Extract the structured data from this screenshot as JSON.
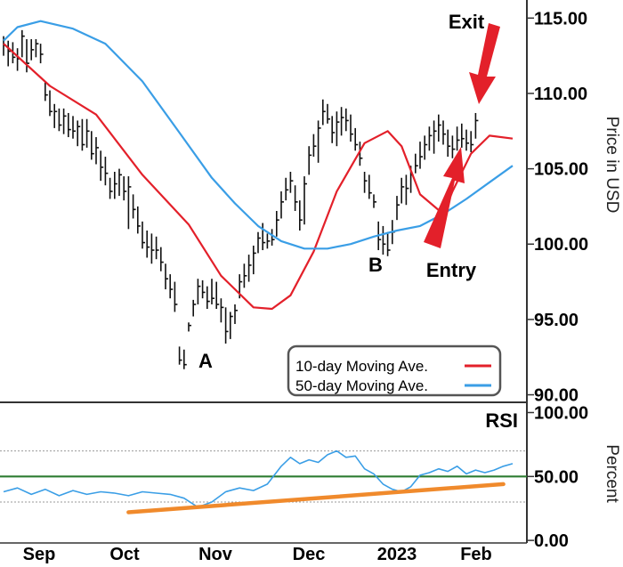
{
  "chart_data": [
    {
      "type": "ohlc",
      "ylabel": "Price in USD",
      "yticks": [
        "115.00",
        "110.00",
        "105.00",
        "100.00",
        "95.00",
        "90.00"
      ],
      "ylim": [
        89.5,
        116.2
      ],
      "x_months": [
        "Sep",
        "Oct",
        "Nov",
        "Dec",
        "2023",
        "Feb"
      ],
      "legend": [
        {
          "name": "10-day Moving Ave.",
          "color": "#e3202a"
        },
        {
          "name": "50-day Moving Ave.",
          "color": "#3a9ee6"
        }
      ],
      "legend_position": "bottom-right",
      "annotations": [
        {
          "text": "A",
          "kind": "label"
        },
        {
          "text": "B",
          "kind": "label"
        },
        {
          "text": "Exit",
          "kind": "arrow"
        },
        {
          "text": "Entry",
          "kind": "arrow"
        }
      ],
      "series": [
        {
          "name": "10-day Moving Ave.",
          "x": [
            0,
            10,
            20,
            30,
            40,
            47,
            54,
            58,
            62,
            67,
            72,
            78,
            83,
            86,
            90,
            95,
            97,
            101,
            105,
            110
          ],
          "values": [
            113.3,
            110.5,
            108.6,
            104.6,
            101.3,
            97.9,
            95.8,
            95.7,
            96.6,
            99.5,
            103.5,
            106.7,
            107.5,
            106.5,
            103.3,
            102.0,
            103.5,
            106.0,
            107.2,
            107.0
          ]
        },
        {
          "name": "50-day Moving Ave.",
          "x": [
            0,
            3,
            8,
            15,
            22,
            30,
            38,
            45,
            50,
            55,
            60,
            65,
            70,
            75,
            80,
            85,
            90,
            95,
            100,
            105,
            110
          ],
          "values": [
            113.5,
            114.4,
            114.8,
            114.3,
            113.3,
            110.8,
            107.4,
            104.4,
            102.7,
            101.2,
            100.2,
            99.7,
            99.7,
            100.0,
            100.5,
            100.9,
            101.2,
            102.0,
            103.0,
            104.1,
            105.2
          ]
        }
      ],
      "bars": [
        {
          "x": 0,
          "h": 113.8,
          "l": 112.5,
          "c": 113.2
        },
        {
          "x": 1,
          "h": 113.5,
          "l": 111.8,
          "c": 112.8
        },
        {
          "x": 2,
          "h": 113.4,
          "l": 112.0,
          "c": 112.4
        },
        {
          "x": 3,
          "h": 113.0,
          "l": 111.5,
          "c": 112.3
        },
        {
          "x": 4,
          "h": 114.2,
          "l": 112.4,
          "c": 113.8
        },
        {
          "x": 5,
          "h": 113.6,
          "l": 111.4,
          "c": 112.0
        },
        {
          "x": 6,
          "h": 113.6,
          "l": 112.2,
          "c": 112.9
        },
        {
          "x": 7,
          "h": 113.6,
          "l": 112.4,
          "c": 113.3
        },
        {
          "x": 8,
          "h": 113.3,
          "l": 112.0,
          "c": 112.6
        },
        {
          "x": 9,
          "h": 110.8,
          "l": 109.5,
          "c": 109.9
        },
        {
          "x": 10,
          "h": 110.2,
          "l": 108.5,
          "c": 108.8
        },
        {
          "x": 11,
          "h": 109.3,
          "l": 107.7,
          "c": 108.8
        },
        {
          "x": 12,
          "h": 109.0,
          "l": 107.5,
          "c": 107.9
        },
        {
          "x": 13,
          "h": 109.0,
          "l": 107.3,
          "c": 108.5
        },
        {
          "x": 14,
          "h": 108.7,
          "l": 107.1,
          "c": 107.6
        },
        {
          "x": 15,
          "h": 108.5,
          "l": 107.0,
          "c": 107.5
        },
        {
          "x": 16,
          "h": 108.2,
          "l": 106.5,
          "c": 107.8
        },
        {
          "x": 17,
          "h": 108.3,
          "l": 106.2,
          "c": 106.6
        },
        {
          "x": 18,
          "h": 108.3,
          "l": 106.4,
          "c": 107.5
        },
        {
          "x": 19,
          "h": 107.5,
          "l": 105.6,
          "c": 106.0
        },
        {
          "x": 20,
          "h": 107.1,
          "l": 105.3,
          "c": 106.4
        },
        {
          "x": 21,
          "h": 106.2,
          "l": 104.2,
          "c": 105.1
        },
        {
          "x": 22,
          "h": 105.8,
          "l": 103.9,
          "c": 104.7
        },
        {
          "x": 23,
          "h": 104.4,
          "l": 103.0,
          "c": 103.5
        },
        {
          "x": 24,
          "h": 104.8,
          "l": 103.0,
          "c": 104.0
        },
        {
          "x": 25,
          "h": 105.0,
          "l": 103.2,
          "c": 104.6
        },
        {
          "x": 26,
          "h": 104.5,
          "l": 102.9,
          "c": 103.5
        },
        {
          "x": 27,
          "h": 104.5,
          "l": 101.0,
          "c": 103.8
        },
        {
          "x": 28,
          "h": 103.3,
          "l": 101.7,
          "c": 102.3
        },
        {
          "x": 29,
          "h": 102.5,
          "l": 100.7,
          "c": 101.2
        },
        {
          "x": 30,
          "h": 101.5,
          "l": 99.7,
          "c": 100.1
        },
        {
          "x": 31,
          "h": 100.9,
          "l": 99.1,
          "c": 99.8
        },
        {
          "x": 32,
          "h": 100.7,
          "l": 98.7,
          "c": 99.6
        },
        {
          "x": 33,
          "h": 100.5,
          "l": 99.0,
          "c": 99.6
        },
        {
          "x": 34,
          "h": 99.8,
          "l": 98.2,
          "c": 98.8
        },
        {
          "x": 35,
          "h": 98.7,
          "l": 97.0,
          "c": 97.7
        },
        {
          "x": 36,
          "h": 98.0,
          "l": 96.4,
          "c": 97.0
        },
        {
          "x": 37,
          "h": 97.5,
          "l": 95.5,
          "c": 96.0
        },
        {
          "x": 38,
          "h": 93.2,
          "l": 92.0,
          "c": 92.3
        },
        {
          "x": 39,
          "h": 93.0,
          "l": 91.7,
          "c": 92.0
        },
        {
          "x": 40,
          "h": 94.8,
          "l": 94.2,
          "c": 94.6
        },
        {
          "x": 41,
          "h": 96.3,
          "l": 95.2,
          "c": 96.0
        },
        {
          "x": 42,
          "h": 97.7,
          "l": 96.0,
          "c": 97.2
        },
        {
          "x": 43,
          "h": 97.6,
          "l": 96.4,
          "c": 96.8
        },
        {
          "x": 44,
          "h": 97.2,
          "l": 95.7,
          "c": 96.2
        },
        {
          "x": 45,
          "h": 97.7,
          "l": 96.0,
          "c": 96.4
        },
        {
          "x": 46,
          "h": 97.5,
          "l": 95.7,
          "c": 96.0
        },
        {
          "x": 47,
          "h": 96.4,
          "l": 94.8,
          "c": 95.8
        },
        {
          "x": 48,
          "h": 95.8,
          "l": 93.4,
          "c": 94.2
        },
        {
          "x": 49,
          "h": 95.5,
          "l": 93.7,
          "c": 95.2
        },
        {
          "x": 50,
          "h": 96.0,
          "l": 94.7,
          "c": 95.6
        },
        {
          "x": 51,
          "h": 98.0,
          "l": 96.4,
          "c": 97.5
        },
        {
          "x": 52,
          "h": 98.7,
          "l": 97.1,
          "c": 97.9
        },
        {
          "x": 53,
          "h": 99.3,
          "l": 97.5,
          "c": 98.6
        },
        {
          "x": 54,
          "h": 99.9,
          "l": 98.0,
          "c": 99.4
        },
        {
          "x": 55,
          "h": 100.8,
          "l": 99.4,
          "c": 100.4
        },
        {
          "x": 56,
          "h": 101.4,
          "l": 99.6,
          "c": 100.1
        },
        {
          "x": 57,
          "h": 100.7,
          "l": 99.7,
          "c": 100.2
        },
        {
          "x": 58,
          "h": 101.0,
          "l": 99.9,
          "c": 100.3
        },
        {
          "x": 59,
          "h": 102.2,
          "l": 100.5,
          "c": 101.6
        },
        {
          "x": 60,
          "h": 103.5,
          "l": 101.7,
          "c": 102.8
        },
        {
          "x": 61,
          "h": 104.4,
          "l": 102.9,
          "c": 103.6
        },
        {
          "x": 62,
          "h": 104.8,
          "l": 103.4,
          "c": 104.2
        },
        {
          "x": 63,
          "h": 103.9,
          "l": 102.2,
          "c": 102.8
        },
        {
          "x": 64,
          "h": 102.9,
          "l": 100.9,
          "c": 101.6
        },
        {
          "x": 65,
          "h": 104.5,
          "l": 101.3,
          "c": 104.0
        },
        {
          "x": 66,
          "h": 106.5,
          "l": 104.6,
          "c": 105.9
        },
        {
          "x": 67,
          "h": 107.3,
          "l": 105.8,
          "c": 106.5
        },
        {
          "x": 68,
          "h": 108.2,
          "l": 105.4,
          "c": 107.7
        },
        {
          "x": 69,
          "h": 109.6,
          "l": 107.9,
          "c": 108.8
        },
        {
          "x": 70,
          "h": 109.3,
          "l": 108.0,
          "c": 108.3
        },
        {
          "x": 71,
          "h": 108.5,
          "l": 106.7,
          "c": 107.4
        },
        {
          "x": 72,
          "h": 108.8,
          "l": 106.5,
          "c": 108.1
        },
        {
          "x": 73,
          "h": 109.1,
          "l": 107.2,
          "c": 108.4
        },
        {
          "x": 74,
          "h": 109.0,
          "l": 107.5,
          "c": 108.2
        },
        {
          "x": 75,
          "h": 108.6,
          "l": 106.8,
          "c": 107.3
        },
        {
          "x": 76,
          "h": 107.7,
          "l": 106.2,
          "c": 106.6
        },
        {
          "x": 77,
          "h": 106.8,
          "l": 105.2,
          "c": 105.7
        },
        {
          "x": 78,
          "h": 104.8,
          "l": 103.4,
          "c": 104.2
        },
        {
          "x": 79,
          "h": 104.6,
          "l": 103.0,
          "c": 103.4
        },
        {
          "x": 80,
          "h": 103.3,
          "l": 102.4,
          "c": 102.8
        },
        {
          "x": 81,
          "h": 101.5,
          "l": 99.6,
          "c": 100.3
        },
        {
          "x": 82,
          "h": 101.2,
          "l": 99.3,
          "c": 100.0
        },
        {
          "x": 83,
          "h": 100.8,
          "l": 99.2,
          "c": 99.6
        },
        {
          "x": 84,
          "h": 101.6,
          "l": 100.0,
          "c": 100.8
        },
        {
          "x": 85,
          "h": 103.2,
          "l": 101.6,
          "c": 102.6
        },
        {
          "x": 86,
          "h": 104.4,
          "l": 102.7,
          "c": 103.8
        },
        {
          "x": 87,
          "h": 104.6,
          "l": 102.6,
          "c": 103.7
        },
        {
          "x": 88,
          "h": 105.2,
          "l": 103.4,
          "c": 104.6
        },
        {
          "x": 89,
          "h": 106.0,
          "l": 104.7,
          "c": 105.2
        },
        {
          "x": 90,
          "h": 106.8,
          "l": 105.0,
          "c": 105.8
        },
        {
          "x": 91,
          "h": 107.2,
          "l": 105.6,
          "c": 106.6
        },
        {
          "x": 92,
          "h": 107.8,
          "l": 106.2,
          "c": 107.2
        },
        {
          "x": 93,
          "h": 108.2,
          "l": 106.0,
          "c": 107.5
        },
        {
          "x": 94,
          "h": 108.6,
          "l": 106.8,
          "c": 107.9
        },
        {
          "x": 95,
          "h": 108.2,
          "l": 106.6,
          "c": 107.3
        },
        {
          "x": 96,
          "h": 107.6,
          "l": 105.8,
          "c": 106.5
        },
        {
          "x": 97,
          "h": 107.2,
          "l": 105.7,
          "c": 106.3
        },
        {
          "x": 98,
          "h": 107.8,
          "l": 106.2,
          "c": 106.9
        },
        {
          "x": 99,
          "h": 108.0,
          "l": 106.4,
          "c": 107.0
        },
        {
          "x": 100,
          "h": 107.6,
          "l": 106.2,
          "c": 106.7
        },
        {
          "x": 101,
          "h": 107.5,
          "l": 106.1,
          "c": 106.6
        },
        {
          "x": 102,
          "h": 108.7,
          "l": 107.0,
          "c": 108.2
        }
      ]
    },
    {
      "type": "line",
      "ylabel": "Percent",
      "title": "RSI",
      "yticks": [
        "100.00",
        "50.00",
        "0.00"
      ],
      "ylim": [
        -2,
        108
      ],
      "reference_lines": [
        70,
        30
      ],
      "midline": 50,
      "trendline": {
        "x": [
          27,
          108
        ],
        "values": [
          22,
          44
        ]
      },
      "series": [
        {
          "name": "RSI",
          "x": [
            0,
            3,
            6,
            9,
            12,
            15,
            18,
            21,
            24,
            27,
            30,
            33,
            36,
            39,
            42,
            45,
            48,
            51,
            54,
            57,
            60,
            62,
            64,
            66,
            68,
            70,
            72,
            74,
            76,
            78,
            80,
            82,
            84,
            86,
            88,
            90,
            92,
            94,
            96,
            98,
            100,
            102,
            104,
            106,
            108,
            110
          ],
          "values": [
            38,
            41,
            36,
            40,
            35,
            39,
            36,
            38,
            37,
            35,
            38,
            37,
            36,
            33,
            26,
            30,
            38,
            41,
            39,
            44,
            58,
            65,
            60,
            63,
            61,
            67,
            70,
            65,
            66,
            56,
            52,
            44,
            40,
            38,
            42,
            51,
            53,
            56,
            54,
            58,
            52,
            55,
            53,
            55,
            58,
            60
          ]
        }
      ]
    }
  ]
}
